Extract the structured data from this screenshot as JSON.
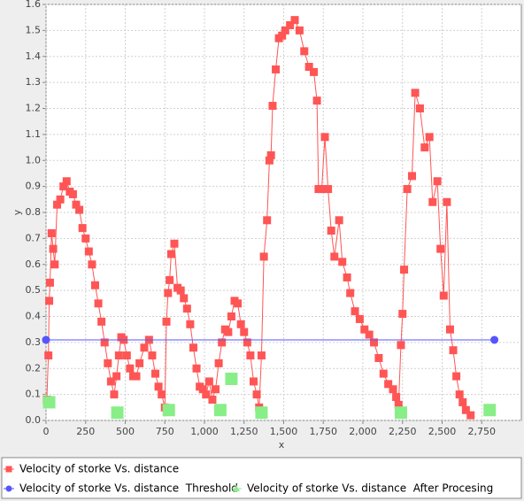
{
  "chart_data": {
    "type": "line",
    "xlabel": "x",
    "ylabel": "y",
    "xlim": [
      0,
      3000
    ],
    "ylim": [
      0,
      1.6
    ],
    "xticks": [
      0,
      250,
      500,
      750,
      {
        "value": 1000,
        "label": "1,000"
      },
      {
        "value": 1250,
        "label": "1,250"
      },
      {
        "value": 1500,
        "label": "1,500"
      },
      {
        "value": 1750,
        "label": "1,750"
      },
      {
        "value": 2000,
        "label": "2,000"
      },
      {
        "value": 2250,
        "label": "2,250"
      },
      {
        "value": 2500,
        "label": "2,500"
      },
      {
        "value": 2750,
        "label": "2,750"
      }
    ],
    "yticks": [
      {
        "value": 0,
        "label": "0.0"
      },
      0.1,
      0.2,
      0.3,
      0.4,
      0.5,
      0.6,
      0.7,
      0.8,
      0.9,
      {
        "value": 1,
        "label": "1.0"
      },
      1.1,
      1.2,
      1.3,
      1.4,
      1.5,
      1.6
    ],
    "grid": true,
    "legend": "bottom",
    "series": [
      {
        "name": "Velocity of storke Vs. distance",
        "color": "#ff5555",
        "marker": "square",
        "line": true,
        "x": [
          5,
          15,
          20,
          25,
          35,
          45,
          55,
          70,
          90,
          110,
          130,
          150,
          170,
          190,
          210,
          230,
          250,
          270,
          290,
          310,
          330,
          350,
          370,
          390,
          410,
          430,
          445,
          460,
          475,
          490,
          510,
          530,
          550,
          570,
          590,
          620,
          650,
          670,
          690,
          710,
          730,
          750,
          760,
          770,
          780,
          790,
          810,
          830,
          850,
          870,
          890,
          910,
          930,
          950,
          970,
          990,
          1010,
          1030,
          1050,
          1070,
          1090,
          1110,
          1130,
          1150,
          1170,
          1190,
          1210,
          1230,
          1250,
          1270,
          1290,
          1310,
          1330,
          1345,
          1360,
          1375,
          1395,
          1410,
          1420,
          1430,
          1450,
          1470,
          1490,
          1510,
          1540,
          1570,
          1600,
          1630,
          1660,
          1690,
          1710,
          1720,
          1740,
          1760,
          1780,
          1800,
          1820,
          1850,
          1870,
          1900,
          1920,
          1950,
          1980,
          2010,
          2040,
          2070,
          2100,
          2130,
          2160,
          2190,
          2210,
          2225,
          2240,
          2250,
          2260,
          2280,
          2310,
          2330,
          2360,
          2390,
          2420,
          2440,
          2470,
          2490,
          2510,
          2530,
          2550,
          2570,
          2590,
          2610,
          2630,
          2650,
          2680
        ],
        "values": [
          0.08,
          0.25,
          0.46,
          0.53,
          0.72,
          0.66,
          0.6,
          0.83,
          0.85,
          0.9,
          0.92,
          0.88,
          0.87,
          0.83,
          0.81,
          0.74,
          0.7,
          0.65,
          0.6,
          0.52,
          0.45,
          0.38,
          0.3,
          0.22,
          0.15,
          0.1,
          0.17,
          0.25,
          0.32,
          0.31,
          0.25,
          0.2,
          0.17,
          0.17,
          0.22,
          0.28,
          0.31,
          0.25,
          0.18,
          0.13,
          0.1,
          0.05,
          0.38,
          0.49,
          0.54,
          0.64,
          0.68,
          0.51,
          0.5,
          0.47,
          0.43,
          0.37,
          0.28,
          0.2,
          0.13,
          0.12,
          0.1,
          0.15,
          0.08,
          0.12,
          0.22,
          0.3,
          0.35,
          0.34,
          0.4,
          0.46,
          0.45,
          0.37,
          0.34,
          0.3,
          0.25,
          0.15,
          0.1,
          0.05,
          0.25,
          0.63,
          0.77,
          1.0,
          1.02,
          1.21,
          1.35,
          1.47,
          1.48,
          1.5,
          1.52,
          1.54,
          1.5,
          1.42,
          1.36,
          1.34,
          1.23,
          0.89,
          0.89,
          1.09,
          0.89,
          0.73,
          0.63,
          0.77,
          0.61,
          0.55,
          0.49,
          0.42,
          0.39,
          0.35,
          0.33,
          0.3,
          0.24,
          0.18,
          0.14,
          0.12,
          0.09,
          0.06,
          0.29,
          0.41,
          0.58,
          0.89,
          0.94,
          1.26,
          1.2,
          1.05,
          1.09,
          0.84,
          0.92,
          0.66,
          0.48,
          0.84,
          0.35,
          0.27,
          0.17,
          0.1,
          0.07,
          0.04,
          0.02
        ]
      },
      {
        "name": "Velocity of storke Vs. distance  Threshold",
        "color": "#5555ff",
        "marker": "circle",
        "line": true,
        "x": [
          0,
          2830
        ],
        "values": [
          0.31,
          0.31
        ]
      },
      {
        "name": "Velocity of storke Vs. distance  After Procesing",
        "color": "#88ee88",
        "marker": "square",
        "line": false,
        "x": [
          20,
          450,
          775,
          1100,
          1170,
          1360,
          2240,
          2800
        ],
        "values": [
          0.07,
          0.03,
          0.04,
          0.04,
          0.16,
          0.03,
          0.03,
          0.04
        ]
      }
    ]
  }
}
